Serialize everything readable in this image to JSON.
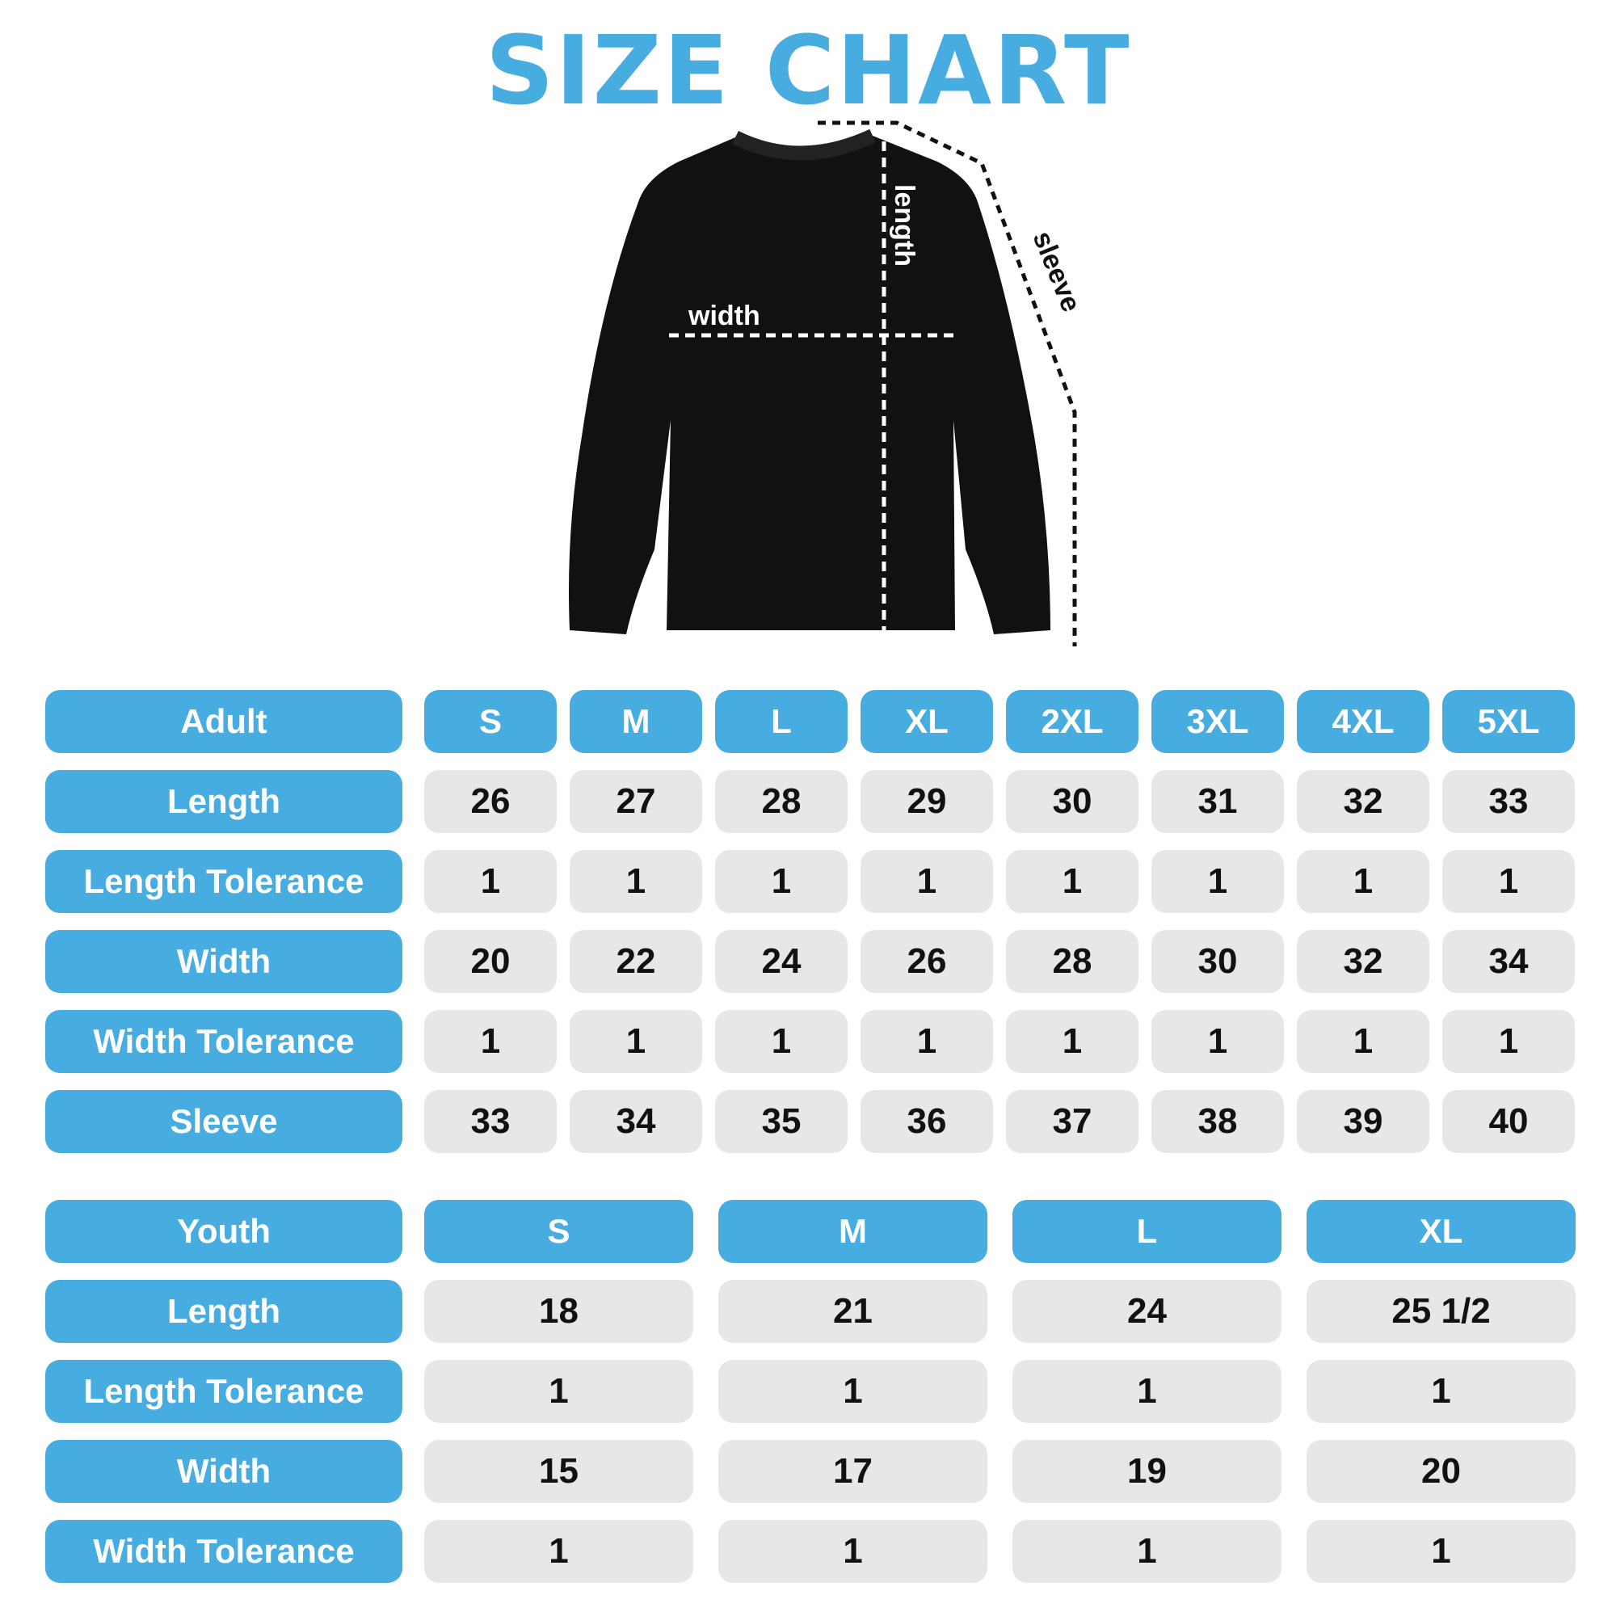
{
  "title": "SIZE CHART",
  "diagram": {
    "width_label": "width",
    "length_label": "length",
    "sleeve_label": "sleeve"
  },
  "colors": {
    "accent": "#47ACE0",
    "cell": "#E6E7E9"
  },
  "adult": {
    "header": "Adult",
    "sizes": [
      "S",
      "M",
      "L",
      "XL",
      "2XL",
      "3XL",
      "4XL",
      "5XL"
    ],
    "rows": [
      {
        "label": "Length",
        "values": [
          "26",
          "27",
          "28",
          "29",
          "30",
          "31",
          "32",
          "33"
        ]
      },
      {
        "label": "Length Tolerance",
        "values": [
          "1",
          "1",
          "1",
          "1",
          "1",
          "1",
          "1",
          "1"
        ]
      },
      {
        "label": "Width",
        "values": [
          "20",
          "22",
          "24",
          "26",
          "28",
          "30",
          "32",
          "34"
        ]
      },
      {
        "label": "Width Tolerance",
        "values": [
          "1",
          "1",
          "1",
          "1",
          "1",
          "1",
          "1",
          "1"
        ]
      },
      {
        "label": "Sleeve",
        "values": [
          "33",
          "34",
          "35",
          "36",
          "37",
          "38",
          "39",
          "40"
        ]
      }
    ]
  },
  "youth": {
    "header": "Youth",
    "sizes": [
      "S",
      "M",
      "L",
      "XL"
    ],
    "rows": [
      {
        "label": "Length",
        "values": [
          "18",
          "21",
          "24",
          "25 1/2"
        ]
      },
      {
        "label": "Length Tolerance",
        "values": [
          "1",
          "1",
          "1",
          "1"
        ]
      },
      {
        "label": "Width",
        "values": [
          "15",
          "17",
          "19",
          "20"
        ]
      },
      {
        "label": "Width Tolerance",
        "values": [
          "1",
          "1",
          "1",
          "1"
        ]
      }
    ],
    "fraction": {
      "whole": "25",
      "num": "1",
      "den": "2"
    }
  }
}
